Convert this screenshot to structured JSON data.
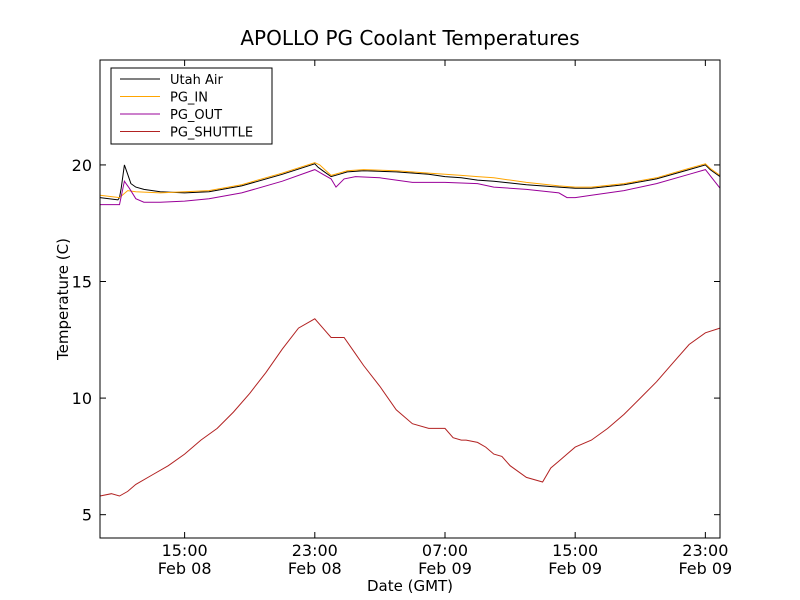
{
  "chart_data": {
    "type": "line",
    "title": "APOLLO PG Coolant Temperatures",
    "xlabel": "Date (GMT)",
    "ylabel": "Temperature (C)",
    "x_unit": "hours since Feb 08 00:00 GMT",
    "xlim": [
      9.8,
      47.9
    ],
    "ylim": [
      4,
      24.5
    ],
    "yticks": [
      5,
      10,
      15,
      20
    ],
    "xticks": [
      {
        "value": 15,
        "time": "15:00",
        "date": "Feb 08"
      },
      {
        "value": 23,
        "time": "23:00",
        "date": "Feb 08"
      },
      {
        "value": 31,
        "time": "07:00",
        "date": "Feb 09"
      },
      {
        "value": 39,
        "time": "15:00",
        "date": "Feb 09"
      },
      {
        "value": 47,
        "time": "23:00",
        "date": "Feb 09"
      }
    ],
    "legend_position": "top-left",
    "series": [
      {
        "name": "Utah Air",
        "color": "#000000",
        "x": [
          9.8,
          10.9,
          11.0,
          11.1,
          11.3,
          11.5,
          11.7,
          12.0,
          12.5,
          13.5,
          15.0,
          16.5,
          18.5,
          21.0,
          23.0,
          23.2,
          23.5,
          24.0,
          24.5,
          25.0,
          26.0,
          28.0,
          30.0,
          31.0,
          32.0,
          33.0,
          34.0,
          36.0,
          38.0,
          39.0,
          40.0,
          42.0,
          44.0,
          46.0,
          47.0,
          47.3,
          47.9
        ],
        "y": [
          18.6,
          18.5,
          18.6,
          19.0,
          20.0,
          19.6,
          19.2,
          19.05,
          18.95,
          18.85,
          18.8,
          18.85,
          19.1,
          19.6,
          20.05,
          19.9,
          19.75,
          19.5,
          19.6,
          19.7,
          19.75,
          19.7,
          19.6,
          19.5,
          19.45,
          19.35,
          19.3,
          19.15,
          19.05,
          19.0,
          19.0,
          19.15,
          19.4,
          19.8,
          20.0,
          19.8,
          19.5
        ]
      },
      {
        "name": "PG_IN",
        "color": "#ffa500",
        "x": [
          9.8,
          11.0,
          11.5,
          12.0,
          13.5,
          15.0,
          16.5,
          18.5,
          21.0,
          23.0,
          23.3,
          24.0,
          24.5,
          25.0,
          26.0,
          28.0,
          30.0,
          31.0,
          32.0,
          33.0,
          34.0,
          36.0,
          38.0,
          39.0,
          40.0,
          42.0,
          44.0,
          46.0,
          47.0,
          47.3,
          47.9
        ],
        "y": [
          18.7,
          18.6,
          18.9,
          18.85,
          18.8,
          18.85,
          18.9,
          19.15,
          19.65,
          20.1,
          20.0,
          19.55,
          19.65,
          19.75,
          19.8,
          19.75,
          19.65,
          19.6,
          19.55,
          19.5,
          19.45,
          19.25,
          19.1,
          19.05,
          19.05,
          19.2,
          19.45,
          19.85,
          20.05,
          19.85,
          19.55
        ]
      },
      {
        "name": "PG_OUT",
        "color": "#990099",
        "x": [
          9.8,
          10.0,
          11.0,
          11.3,
          11.6,
          12.0,
          12.5,
          13.5,
          15.0,
          16.5,
          18.5,
          21.0,
          23.0,
          23.5,
          24.0,
          24.3,
          24.8,
          25.5,
          27.0,
          29.0,
          31.0,
          33.0,
          34.0,
          36.0,
          38.0,
          38.5,
          39.0,
          40.0,
          42.0,
          44.0,
          46.0,
          47.0,
          47.9
        ],
        "y": [
          18.3,
          18.3,
          18.3,
          19.3,
          19.0,
          18.55,
          18.4,
          18.4,
          18.45,
          18.55,
          18.8,
          19.3,
          19.8,
          19.6,
          19.4,
          19.05,
          19.4,
          19.5,
          19.45,
          19.25,
          19.25,
          19.2,
          19.05,
          18.95,
          18.8,
          18.6,
          18.6,
          18.7,
          18.9,
          19.2,
          19.6,
          19.8,
          19.0
        ]
      },
      {
        "name": "PG_SHUTTLE",
        "color": "#b22222",
        "x": [
          9.8,
          10.5,
          11.0,
          11.5,
          12.0,
          13.0,
          14.0,
          15.0,
          16.0,
          17.0,
          18.0,
          19.0,
          20.0,
          21.0,
          22.0,
          23.0,
          23.5,
          24.0,
          24.8,
          25.5,
          26.0,
          27.0,
          28.0,
          29.0,
          30.0,
          31.0,
          31.5,
          32.0,
          32.3,
          33.0,
          33.5,
          34.0,
          34.5,
          35.0,
          36.0,
          37.0,
          37.5,
          38.0,
          38.5,
          39.0,
          40.0,
          41.0,
          42.0,
          43.0,
          44.0,
          45.0,
          46.0,
          47.0,
          47.9
        ],
        "y": [
          5.8,
          5.9,
          5.8,
          6.0,
          6.3,
          6.7,
          7.1,
          7.6,
          8.2,
          8.7,
          9.4,
          10.2,
          11.1,
          12.1,
          13.0,
          13.4,
          13.0,
          12.6,
          12.6,
          11.9,
          11.4,
          10.5,
          9.5,
          8.9,
          8.7,
          8.7,
          8.3,
          8.2,
          8.2,
          8.1,
          7.9,
          7.6,
          7.5,
          7.1,
          6.6,
          6.4,
          7.0,
          7.3,
          7.6,
          7.9,
          8.2,
          8.7,
          9.3,
          10.0,
          10.7,
          11.5,
          12.3,
          12.8,
          13.0
        ]
      }
    ]
  }
}
